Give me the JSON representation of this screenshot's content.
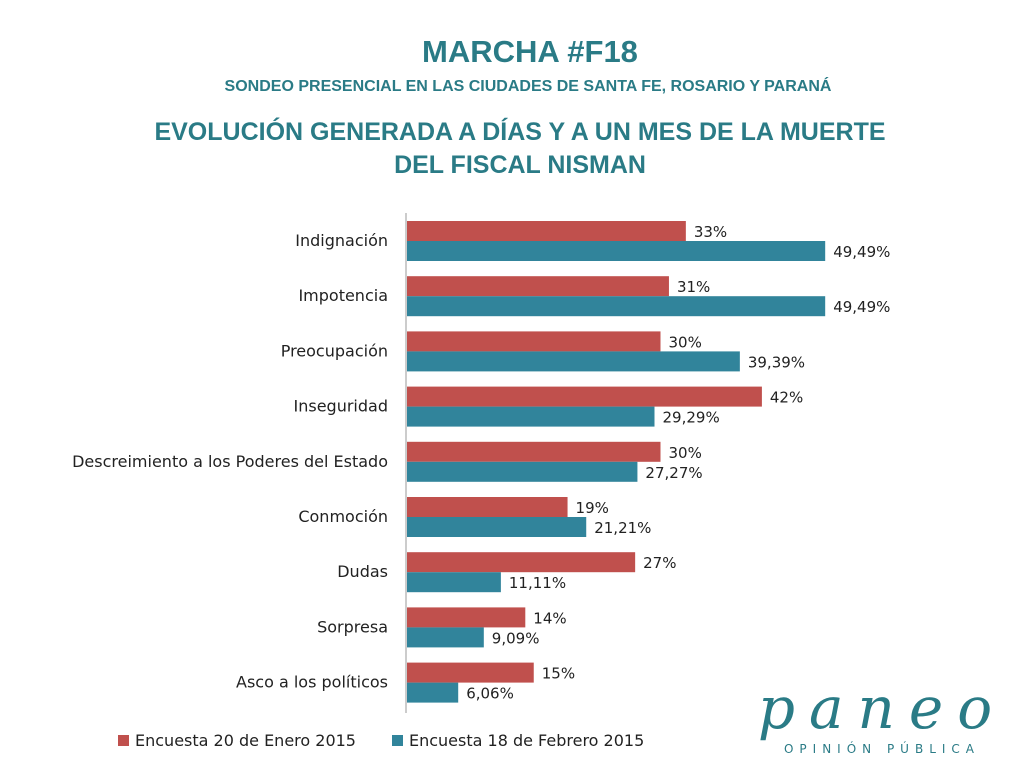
{
  "header": {
    "title": "MARCHA #F18",
    "subtitle": "SONDEO PRESENCIAL EN LAS CIUDADES DE SANTA FE, ROSARIO Y PARANÁ",
    "heading_line1": "EVOLUCIÓN GENERADA A DÍAS Y A UN MES DE LA MUERTE",
    "heading_line2": "DEL FISCAL NISMAN"
  },
  "chart_data": {
    "type": "bar",
    "orientation": "horizontal",
    "categories": [
      "Indignación",
      "Impotencia",
      "Preocupación",
      "Inseguridad",
      "Descreimiento a los Poderes del Estado",
      "Conmoción",
      "Dudas",
      "Sorpresa",
      "Asco a los políticos"
    ],
    "series": [
      {
        "name": "Encuesta 20 de Enero 2015",
        "color": "#c0504d",
        "values": [
          33,
          31,
          30,
          42,
          30,
          19,
          27,
          14,
          15
        ],
        "labels": [
          "33%",
          "31%",
          "30%",
          "42%",
          "30%",
          "19%",
          "27%",
          "14%",
          "15%"
        ]
      },
      {
        "name": "Encuesta 18 de Febrero 2015",
        "color": "#31849b",
        "values": [
          49.49,
          49.49,
          39.39,
          29.29,
          27.27,
          21.21,
          11.11,
          9.09,
          6.06
        ],
        "labels": [
          "49,49%",
          "49,49%",
          "39,39%",
          "29,29%",
          "27,27%",
          "21,21%",
          "11,11%",
          "9,09%",
          "6,06%"
        ]
      }
    ],
    "xlim": [
      0,
      60
    ],
    "grid": false,
    "legend_position": "bottom-left"
  },
  "logo": {
    "word": "paneo",
    "tagline": "OPINIÓN PÚBLICA"
  }
}
